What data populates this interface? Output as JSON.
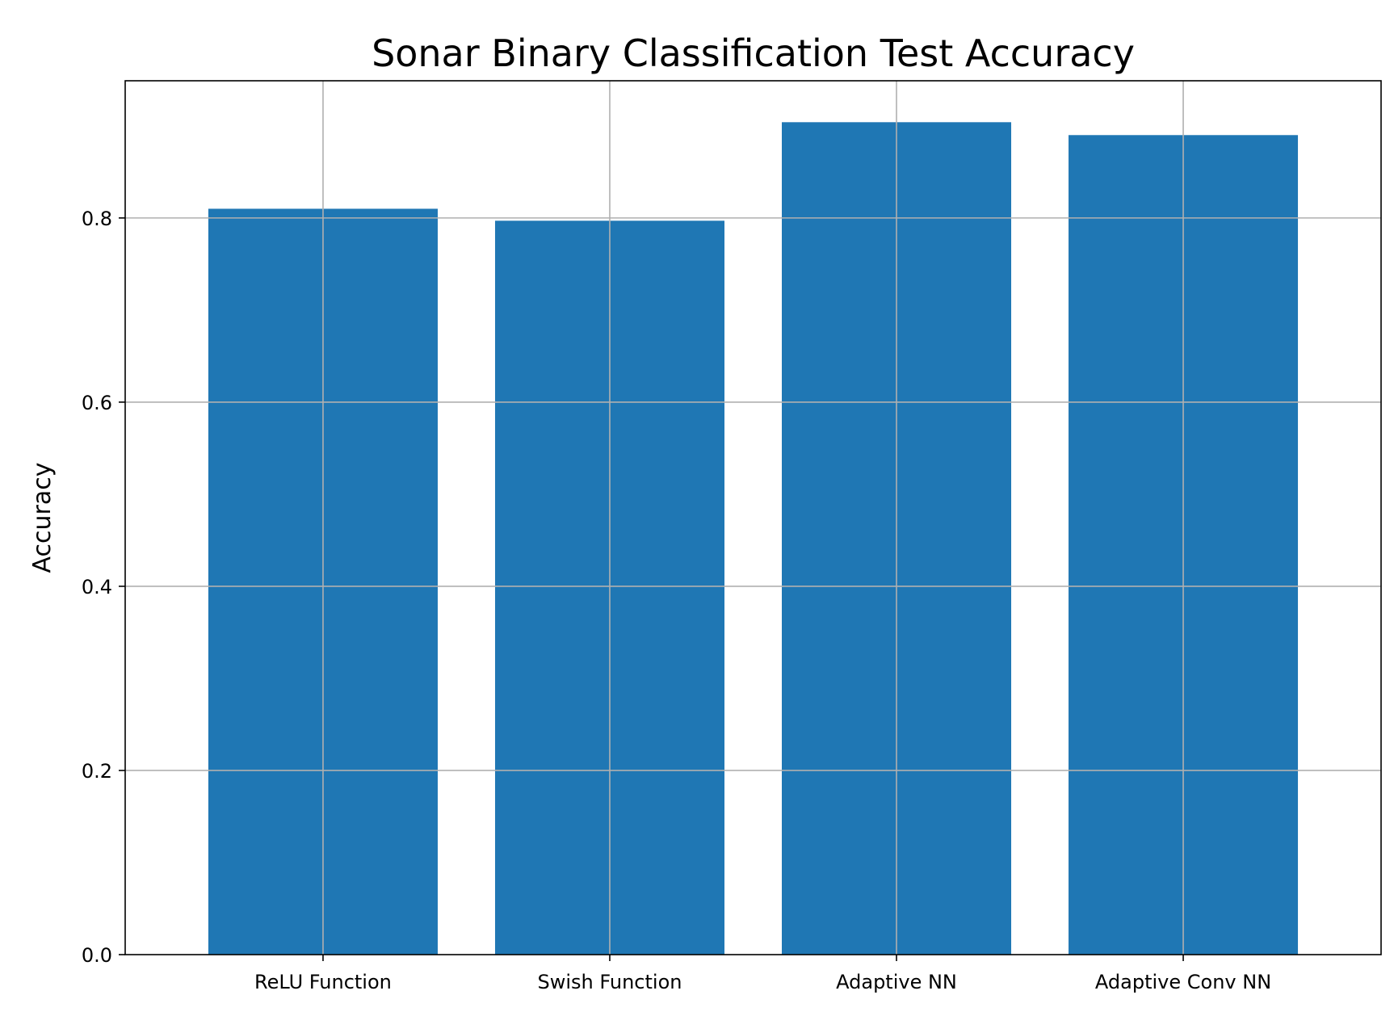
{
  "chart_data": {
    "type": "bar",
    "title": "Sonar Binary Classification Test Accuracy",
    "xlabel": "",
    "ylabel": "Accuracy",
    "categories": [
      "ReLU Function",
      "Swish Function",
      "Adaptive NN",
      "Adaptive Conv NN"
    ],
    "values": [
      0.81,
      0.797,
      0.904,
      0.89
    ],
    "ylim": [
      0,
      0.949
    ],
    "yticks": [
      0.0,
      0.2,
      0.4,
      0.6,
      0.8
    ],
    "ytick_labels": [
      "0.0",
      "0.2",
      "0.4",
      "0.6",
      "0.8"
    ],
    "grid": true,
    "legend": "none",
    "bar_color": "#1f77b4",
    "grid_color": "#b0b0b0",
    "axis_color": "#000000"
  }
}
